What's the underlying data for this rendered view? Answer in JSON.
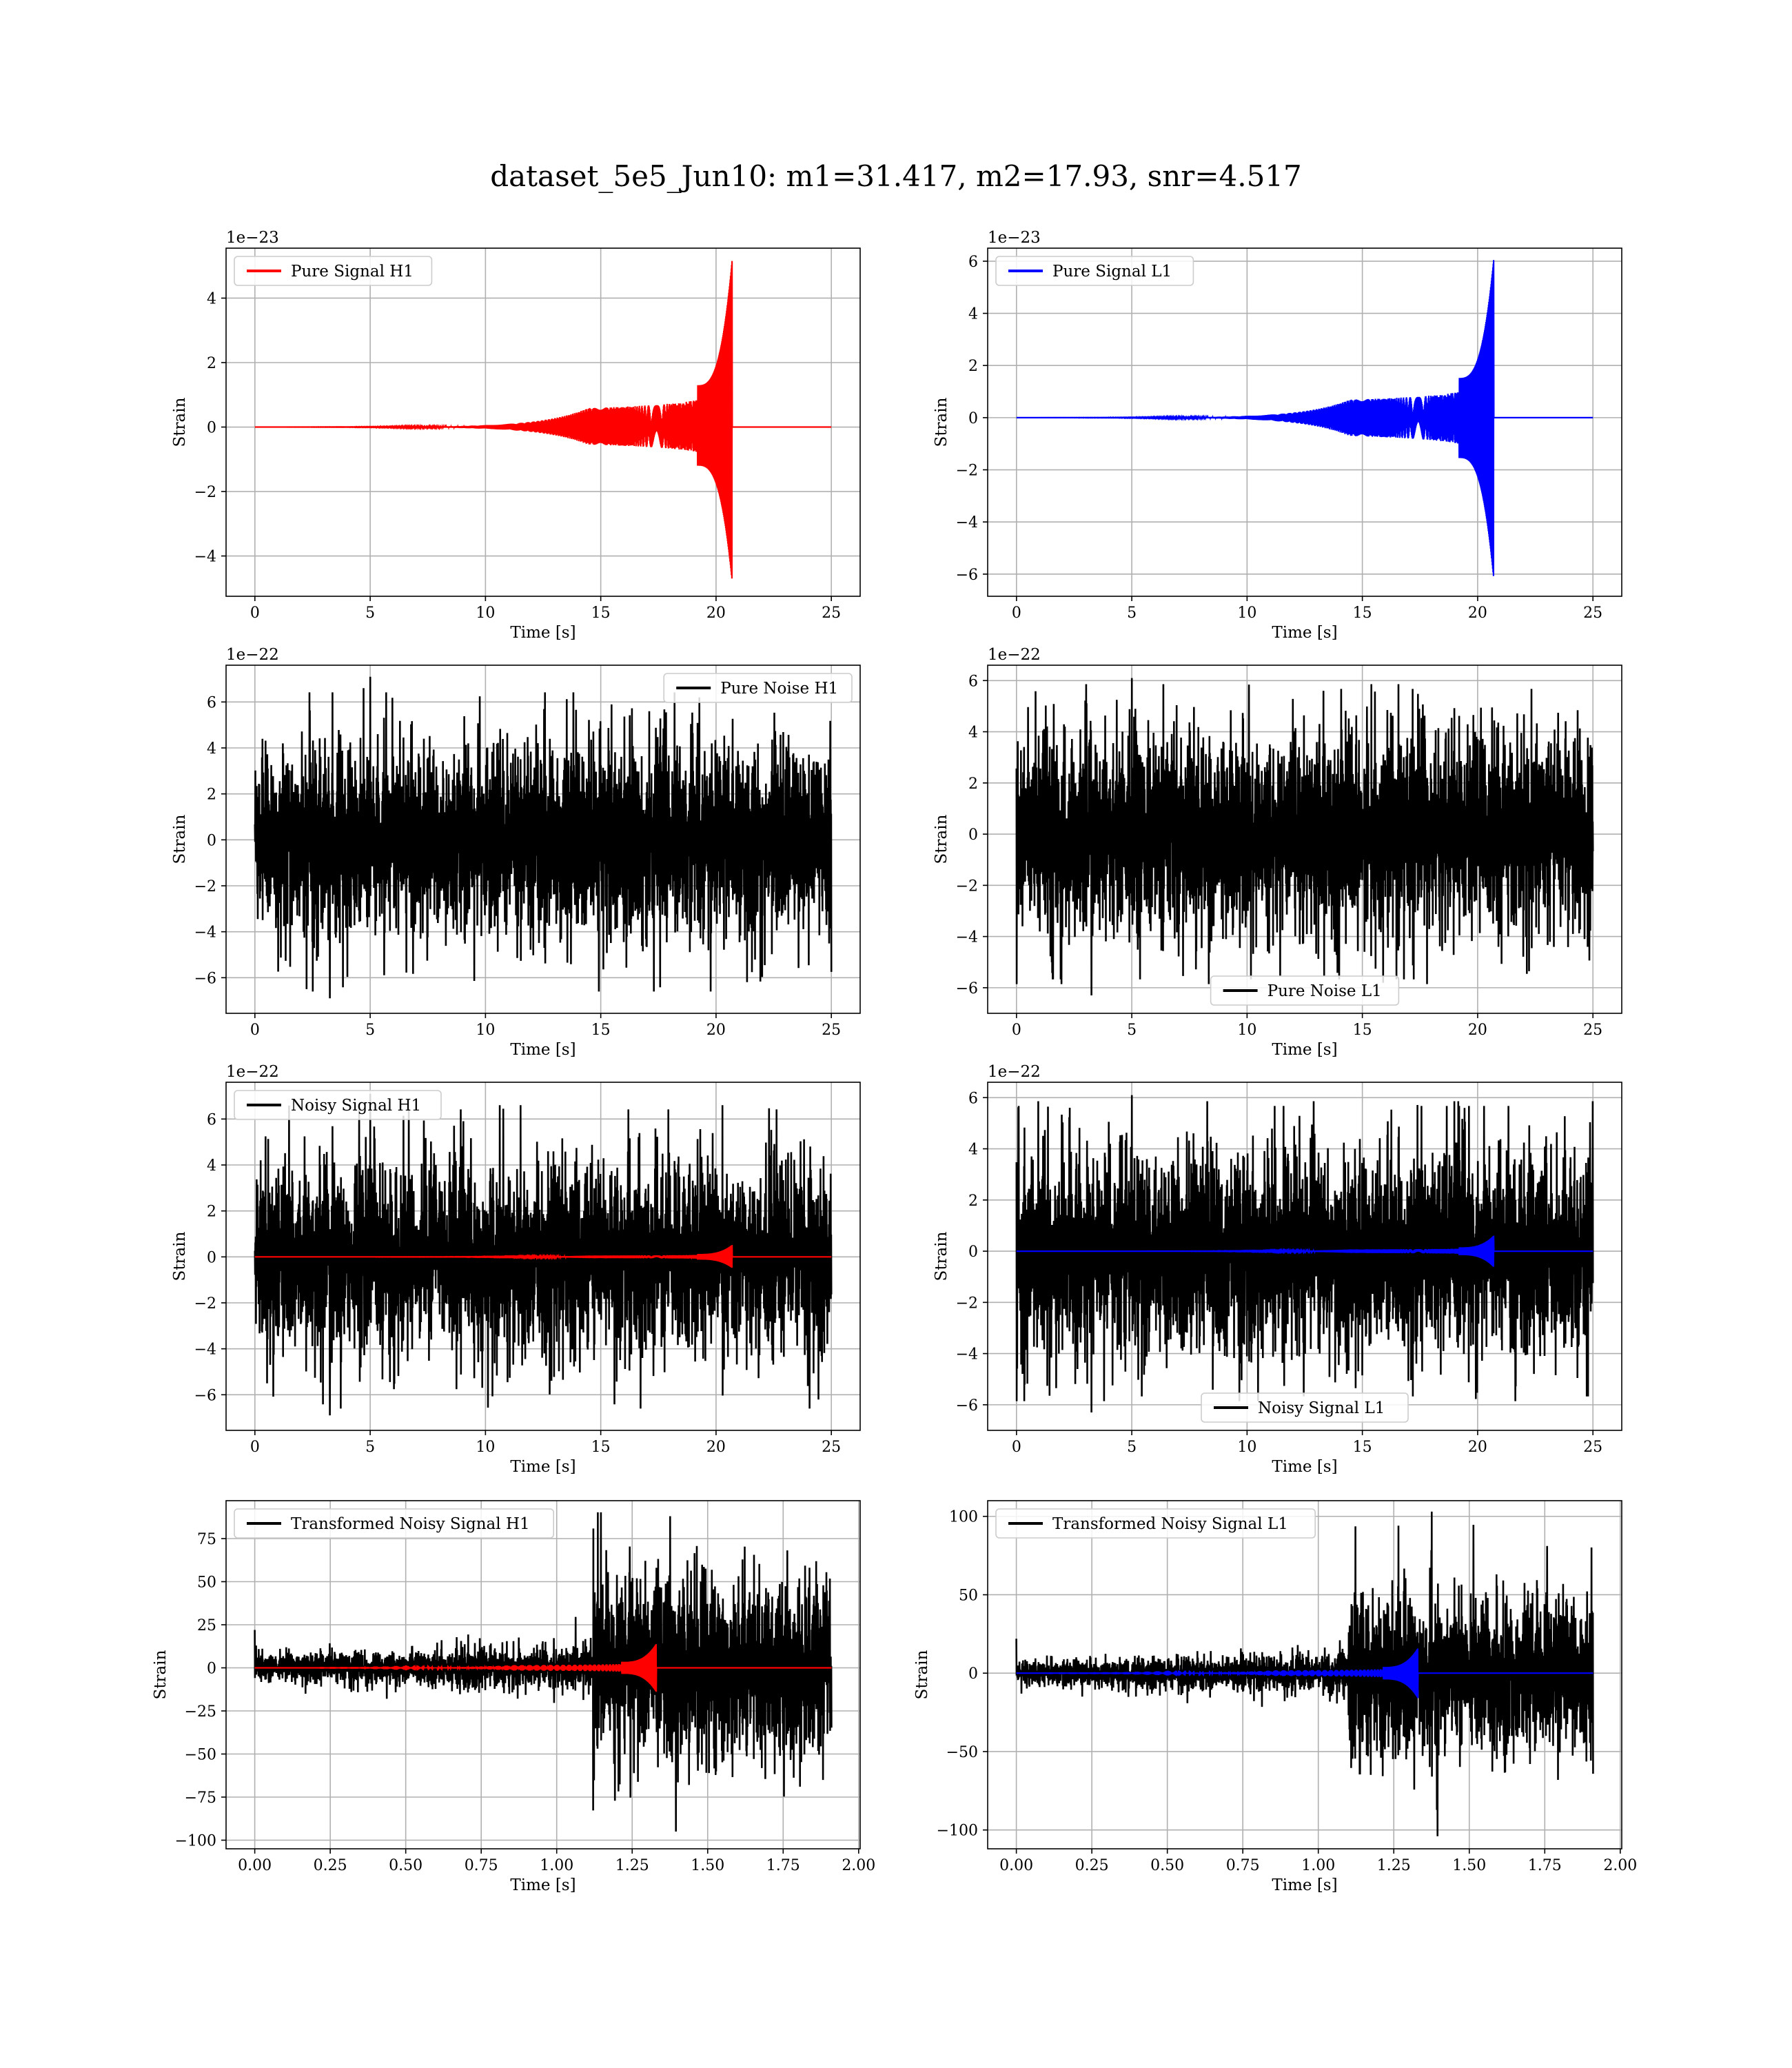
{
  "suptitle": "dataset_5e5_Jun10: m1=31.417, m2=17.93, snr=4.517",
  "chart_data": [
    {
      "type": "line",
      "legend": "Pure Signal H1",
      "legend_loc": "upper left",
      "xlabel": "Time [s]",
      "ylabel": "Strain",
      "offset_text": "1e−23",
      "xlim": [
        -1.25,
        26.25
      ],
      "ylim": [
        -5.25,
        5.55
      ],
      "xticks": [
        0,
        5,
        10,
        15,
        20,
        25
      ],
      "xtick_labels": [
        "0",
        "5",
        "10",
        "15",
        "20",
        "25"
      ],
      "yticks": [
        -4,
        -2,
        0,
        2,
        4
      ],
      "ytick_labels": [
        "−4",
        "−2",
        "0",
        "2",
        "4"
      ],
      "grid": true,
      "series": [
        {
          "name": "Pure Signal H1",
          "color": "#ff0000",
          "kind": "chirp",
          "x_range": [
            0,
            25
          ],
          "merger_time": 20.7,
          "peak_max": 5.2,
          "peak_min": -4.8
        }
      ]
    },
    {
      "type": "line",
      "legend": "Pure Signal L1",
      "legend_loc": "upper left",
      "xlabel": "Time [s]",
      "ylabel": "Strain",
      "offset_text": "1e−23",
      "xlim": [
        -1.25,
        26.25
      ],
      "ylim": [
        -6.85,
        6.5
      ],
      "xticks": [
        0,
        5,
        10,
        15,
        20,
        25
      ],
      "xtick_labels": [
        "0",
        "5",
        "10",
        "15",
        "20",
        "25"
      ],
      "yticks": [
        -6,
        -4,
        -2,
        0,
        2,
        4,
        6
      ],
      "ytick_labels": [
        "−6",
        "−4",
        "−2",
        "0",
        "2",
        "4",
        "6"
      ],
      "grid": true,
      "series": [
        {
          "name": "Pure Signal L1",
          "color": "#0000ff",
          "kind": "chirp",
          "x_range": [
            0,
            25
          ],
          "merger_time": 20.7,
          "peak_max": 6.1,
          "peak_min": -6.2
        }
      ]
    },
    {
      "type": "line",
      "legend": "Pure Noise H1",
      "legend_loc": "upper right",
      "xlabel": "Time [s]",
      "ylabel": "Strain",
      "offset_text": "1e−22",
      "xlim": [
        -1.25,
        26.25
      ],
      "ylim": [
        -7.55,
        7.6
      ],
      "xticks": [
        0,
        5,
        10,
        15,
        20,
        25
      ],
      "xtick_labels": [
        "0",
        "5",
        "10",
        "15",
        "20",
        "25"
      ],
      "yticks": [
        -6,
        -4,
        -2,
        0,
        2,
        4,
        6
      ],
      "ytick_labels": [
        "−6",
        "−4",
        "−2",
        "0",
        "2",
        "4",
        "6"
      ],
      "grid": true,
      "series": [
        {
          "name": "Pure Noise H1",
          "color": "#000000",
          "kind": "noise",
          "x_range": [
            0,
            25
          ],
          "core_amplitude": 3.5,
          "max": 7.1,
          "min": -6.9
        }
      ]
    },
    {
      "type": "line",
      "legend": "Pure Noise L1",
      "legend_loc": "lower center",
      "xlabel": "Time [s]",
      "ylabel": "Strain",
      "offset_text": "1e−22",
      "xlim": [
        -1.25,
        26.25
      ],
      "ylim": [
        -7.0,
        6.6
      ],
      "xticks": [
        0,
        5,
        10,
        15,
        20,
        25
      ],
      "xtick_labels": [
        "0",
        "5",
        "10",
        "15",
        "20",
        "25"
      ],
      "yticks": [
        -6,
        -4,
        -2,
        0,
        2,
        4,
        6
      ],
      "ytick_labels": [
        "−6",
        "−4",
        "−2",
        "0",
        "2",
        "4",
        "6"
      ],
      "grid": true,
      "series": [
        {
          "name": "Pure Noise L1",
          "color": "#000000",
          "kind": "noise",
          "x_range": [
            0,
            25
          ],
          "core_amplitude": 3.3,
          "max": 6.1,
          "min": -6.3
        }
      ]
    },
    {
      "type": "line",
      "legend": "Noisy Signal H1",
      "legend_loc": "upper left",
      "xlabel": "Time [s]",
      "ylabel": "Strain",
      "offset_text": "1e−22",
      "xlim": [
        -1.25,
        26.25
      ],
      "ylim": [
        -7.55,
        7.6
      ],
      "xticks": [
        0,
        5,
        10,
        15,
        20,
        25
      ],
      "xtick_labels": [
        "0",
        "5",
        "10",
        "15",
        "20",
        "25"
      ],
      "yticks": [
        -6,
        -4,
        -2,
        0,
        2,
        4,
        6
      ],
      "ytick_labels": [
        "−6",
        "−4",
        "−2",
        "0",
        "2",
        "4",
        "6"
      ],
      "grid": true,
      "series": [
        {
          "name": "Noisy Signal H1",
          "color": "#000000",
          "kind": "noise",
          "x_range": [
            0,
            25
          ],
          "core_amplitude": 3.5,
          "max": 7.1,
          "min": -6.9
        },
        {
          "color": "#ff0000",
          "kind": "chirp",
          "x_range": [
            0,
            25
          ],
          "merger_time": 20.7,
          "peak_max": 0.52,
          "peak_min": -0.48
        }
      ]
    },
    {
      "type": "line",
      "legend": "Noisy Signal L1",
      "legend_loc": "lower center",
      "xlabel": "Time [s]",
      "ylabel": "Strain",
      "offset_text": "1e−22",
      "xlim": [
        -1.25,
        26.25
      ],
      "ylim": [
        -7.0,
        6.6
      ],
      "xticks": [
        0,
        5,
        10,
        15,
        20,
        25
      ],
      "xtick_labels": [
        "0",
        "5",
        "10",
        "15",
        "20",
        "25"
      ],
      "yticks": [
        -6,
        -4,
        -2,
        0,
        2,
        4,
        6
      ],
      "ytick_labels": [
        "−6",
        "−4",
        "−2",
        "0",
        "2",
        "4",
        "6"
      ],
      "grid": true,
      "series": [
        {
          "name": "Noisy Signal L1",
          "color": "#000000",
          "kind": "noise",
          "x_range": [
            0,
            25
          ],
          "core_amplitude": 3.3,
          "max": 6.1,
          "min": -6.3
        },
        {
          "color": "#0000ff",
          "kind": "chirp",
          "x_range": [
            0,
            25
          ],
          "merger_time": 20.7,
          "peak_max": 0.61,
          "peak_min": -0.62
        }
      ]
    },
    {
      "type": "line",
      "legend": "Transformed Noisy Signal H1",
      "legend_loc": "upper left",
      "xlabel": "Time [s]",
      "ylabel": "Strain",
      "offset_text": "",
      "xlim": [
        -0.095,
        2.005
      ],
      "ylim": [
        -105,
        97
      ],
      "xticks": [
        0,
        0.25,
        0.5,
        0.75,
        1.0,
        1.25,
        1.5,
        1.75,
        2.0
      ],
      "xtick_labels": [
        "0.00",
        "0.25",
        "0.50",
        "0.75",
        "1.00",
        "1.25",
        "1.50",
        "1.75",
        "2.00"
      ],
      "yticks": [
        -100,
        -75,
        -50,
        -25,
        0,
        25,
        50,
        75
      ],
      "ytick_labels": [
        "−100",
        "−75",
        "−50",
        "−25",
        "0",
        "25",
        "50",
        "75"
      ],
      "grid": true,
      "series": [
        {
          "name": "Transformed Noisy Signal H1",
          "color": "#000000",
          "kind": "whitened",
          "x_range": [
            0,
            1.91
          ],
          "early_amplitude": 8,
          "late_start": 1.12,
          "late_amplitude": 50,
          "max": 88,
          "min": -95
        },
        {
          "color": "#ff0000",
          "kind": "chirp",
          "x_range": [
            0,
            1.91
          ],
          "merger_time": 1.33,
          "peak_max": 14,
          "peak_min": -14
        }
      ]
    },
    {
      "type": "line",
      "legend": "Transformed Noisy Signal L1",
      "legend_loc": "upper left",
      "xlabel": "Time [s]",
      "ylabel": "Strain",
      "offset_text": "",
      "xlim": [
        -0.095,
        2.005
      ],
      "ylim": [
        -112,
        110
      ],
      "xticks": [
        0,
        0.25,
        0.5,
        0.75,
        1.0,
        1.25,
        1.5,
        1.75,
        2.0
      ],
      "xtick_labels": [
        "0.00",
        "0.25",
        "0.50",
        "0.75",
        "1.00",
        "1.25",
        "1.50",
        "1.75",
        "2.00"
      ],
      "yticks": [
        -100,
        -50,
        0,
        50,
        100
      ],
      "ytick_labels": [
        "−100",
        "−50",
        "0",
        "50",
        "100"
      ],
      "grid": true,
      "series": [
        {
          "name": "Transformed Noisy Signal L1",
          "color": "#000000",
          "kind": "whitened",
          "x_range": [
            0,
            1.91
          ],
          "early_amplitude": 8,
          "late_start": 1.1,
          "late_amplitude": 48,
          "max": 103,
          "min": -104
        },
        {
          "color": "#0000ff",
          "kind": "chirp",
          "x_range": [
            0,
            1.91
          ],
          "merger_time": 1.33,
          "peak_max": 16,
          "peak_min": -16
        }
      ]
    }
  ]
}
